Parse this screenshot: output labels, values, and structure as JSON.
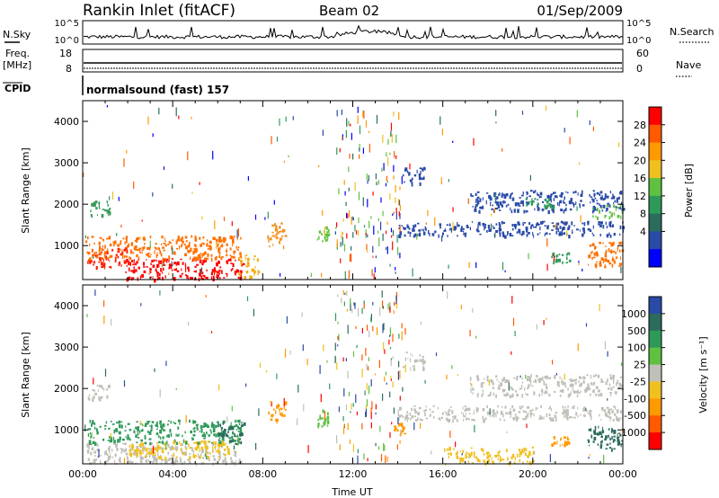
{
  "header": {
    "station": "Rankin Inlet (fitACF)",
    "beam": "Beam 02",
    "date": "01/Sep/2009"
  },
  "summary": {
    "nsky_label": "N.Sky",
    "nsky_ticks": [
      "10^5",
      "10^0"
    ],
    "nsearch_label": "N.Search",
    "nsearch_ticks": [
      "10^5",
      "10^0"
    ],
    "freq_label": "Freq.",
    "freq_unit": "[MHz]",
    "freq_ticks": [
      "18",
      "8"
    ],
    "nave_label": "Nave",
    "nave_ticks": [
      "60",
      "0"
    ],
    "cpid_label": "CPID",
    "cpid_value": "normalsound (fast) 157"
  },
  "chart_data": [
    {
      "type": "heatmap",
      "name": "power",
      "ylabel": "Slant Range [km]",
      "xlabel": "",
      "x_ticks": [
        "00:00",
        "04:00",
        "08:00",
        "12:00",
        "16:00",
        "20:00",
        "00:00"
      ],
      "x_hours": [
        0,
        4,
        8,
        12,
        16,
        20,
        24
      ],
      "y_ticks": [
        1000,
        2000,
        3000,
        4000
      ],
      "xlim": [
        0,
        24
      ],
      "ylim": [
        180,
        4500
      ],
      "colorbar": {
        "label": "Power [dB]",
        "ticks": [
          "28",
          "24",
          "20",
          "16",
          "12",
          "8",
          "4"
        ],
        "colors": [
          "#ff0000",
          "#ff5a00",
          "#ff9a00",
          "#f0c020",
          "#60c040",
          "#2e9a5a",
          "#2b6c5c",
          "#2a4aa8",
          "#0000ff"
        ]
      },
      "regions": [
        {
          "t0": 1.8,
          "t1": 7.2,
          "r0": 200,
          "r1": 700,
          "c": "#ff0000"
        },
        {
          "t0": 0.2,
          "t1": 2.2,
          "r0": 500,
          "r1": 1000,
          "c": "#ff2000"
        },
        {
          "t0": 6.9,
          "t1": 7.8,
          "r0": 250,
          "r1": 800,
          "c": "#f0b020"
        },
        {
          "t0": 0.1,
          "t1": 7.0,
          "r0": 700,
          "r1": 1250,
          "c": "#ff7000"
        },
        {
          "t0": 0.2,
          "t1": 1.2,
          "r0": 1750,
          "r1": 2100,
          "c": "#3a9a5a"
        },
        {
          "t0": 8.2,
          "t1": 9.0,
          "r0": 1000,
          "r1": 1600,
          "c": "#f09020"
        },
        {
          "t0": 10.4,
          "t1": 10.9,
          "r0": 1100,
          "r1": 1500,
          "c": "#60c040"
        },
        {
          "t0": 14.2,
          "t1": 15.2,
          "r0": 2500,
          "r1": 2900,
          "c": "#2a4aa8"
        },
        {
          "t0": 17.2,
          "t1": 24.0,
          "r0": 1850,
          "r1": 2350,
          "c": "#2a4aa8"
        },
        {
          "t0": 19.6,
          "t1": 21.0,
          "r0": 1950,
          "r1": 2150,
          "c": "#2e9a5a"
        },
        {
          "t0": 22.6,
          "t1": 24.0,
          "r0": 1700,
          "r1": 2000,
          "c": "#60c040"
        },
        {
          "t0": 14.0,
          "t1": 24.0,
          "r0": 1250,
          "r1": 1600,
          "c": "#2a4aa8"
        },
        {
          "t0": 22.4,
          "t1": 24.0,
          "r0": 500,
          "r1": 1100,
          "c": "#ff7000"
        },
        {
          "t0": 20.8,
          "t1": 21.6,
          "r0": 600,
          "r1": 850,
          "c": "#2e9a5a"
        }
      ]
    },
    {
      "type": "heatmap",
      "name": "velocity",
      "ylabel": "Slant Range [km]",
      "xlabel": "Time UT",
      "x_ticks": [
        "00:00",
        "04:00",
        "08:00",
        "12:00",
        "16:00",
        "20:00",
        "00:00"
      ],
      "x_hours": [
        0,
        4,
        8,
        12,
        16,
        20,
        24
      ],
      "y_ticks": [
        1000,
        2000,
        3000,
        4000
      ],
      "xlim": [
        0,
        24
      ],
      "ylim": [
        180,
        4500
      ],
      "colorbar": {
        "label": "Velocity [m s⁻¹]",
        "ticks": [
          "1000",
          "500",
          "100",
          "25",
          "-25",
          "-100",
          "-500",
          "-1000"
        ],
        "colors": [
          "#2a4aa8",
          "#2b6c5c",
          "#2e9a5a",
          "#60c040",
          "#c0c0b8",
          "#f0c020",
          "#ff9a00",
          "#ff5a00",
          "#ff0000"
        ]
      },
      "regions": [
        {
          "t0": 0.1,
          "t1": 7.0,
          "r0": 200,
          "r1": 700,
          "c": "#c0c0b8"
        },
        {
          "t0": 0.2,
          "t1": 7.0,
          "r0": 700,
          "r1": 1250,
          "c": "#2e9a5a"
        },
        {
          "t0": 2.0,
          "t1": 6.5,
          "r0": 350,
          "r1": 750,
          "c": "#f0c020"
        },
        {
          "t0": 0.2,
          "t1": 1.2,
          "r0": 1750,
          "r1": 2100,
          "c": "#c0c0b8"
        },
        {
          "t0": 6.0,
          "t1": 7.2,
          "r0": 600,
          "r1": 1200,
          "c": "#2b6c5c"
        },
        {
          "t0": 8.2,
          "t1": 9.0,
          "r0": 1200,
          "r1": 1700,
          "c": "#ff9a00"
        },
        {
          "t0": 10.4,
          "t1": 10.9,
          "r0": 1100,
          "r1": 1500,
          "c": "#60c040"
        },
        {
          "t0": 14.2,
          "t1": 15.2,
          "r0": 2500,
          "r1": 2900,
          "c": "#c0c0b8"
        },
        {
          "t0": 17.2,
          "t1": 24.0,
          "r0": 1850,
          "r1": 2350,
          "c": "#c0c0b8"
        },
        {
          "t0": 14.0,
          "t1": 24.0,
          "r0": 1250,
          "r1": 1600,
          "c": "#c0c0b8"
        },
        {
          "t0": 22.4,
          "t1": 24.0,
          "r0": 500,
          "r1": 1100,
          "c": "#2b6c5c"
        },
        {
          "t0": 20.8,
          "t1": 21.6,
          "r0": 650,
          "r1": 850,
          "c": "#ff9a00"
        },
        {
          "t0": 13.8,
          "t1": 14.3,
          "r0": 900,
          "r1": 1200,
          "c": "#ff9a00"
        },
        {
          "t0": 16.0,
          "t1": 20.0,
          "r0": 200,
          "r1": 600,
          "c": "#f0c020"
        }
      ]
    }
  ]
}
